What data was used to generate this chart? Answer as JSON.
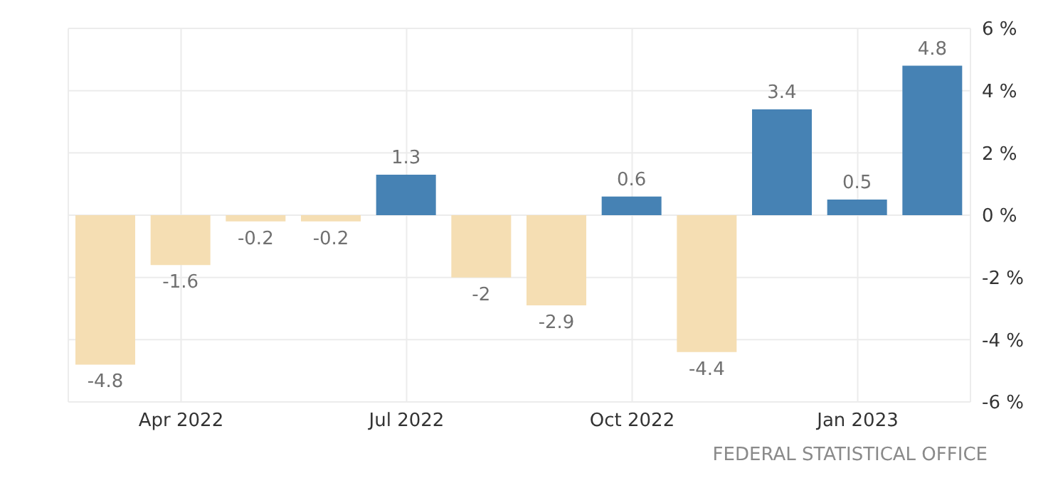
{
  "chart_data": {
    "type": "bar",
    "categories": [
      null,
      "Apr 2022",
      null,
      null,
      "Jul 2022",
      null,
      null,
      "Oct 2022",
      null,
      null,
      "Jan 2023",
      null
    ],
    "values": [
      -4.8,
      -1.6,
      -0.2,
      -0.2,
      1.3,
      -2,
      -2.9,
      0.6,
      -4.4,
      3.4,
      0.5,
      4.8
    ],
    "colors": [
      "#f5deb3",
      "#f5deb3",
      "#f5deb3",
      "#f5deb3",
      "#4682b4",
      "#f5deb3",
      "#f5deb3",
      "#4682b4",
      "#f5deb3",
      "#4682b4",
      "#4682b4",
      "#4682b4"
    ],
    "ylim": [
      -6,
      6
    ],
    "yticks": [
      {
        "value": -6,
        "label": "-6 %"
      },
      {
        "value": -4,
        "label": "-4 %"
      },
      {
        "value": -2,
        "label": "-2 %"
      },
      {
        "value": 0,
        "label": "0 %"
      },
      {
        "value": 2,
        "label": "2 %"
      },
      {
        "value": 4,
        "label": "4 %"
      },
      {
        "value": 6,
        "label": "6 %"
      }
    ],
    "grid": true,
    "data_labels": true,
    "annotations": [
      "FEDERAL STATISTICAL OFFICE"
    ]
  }
}
